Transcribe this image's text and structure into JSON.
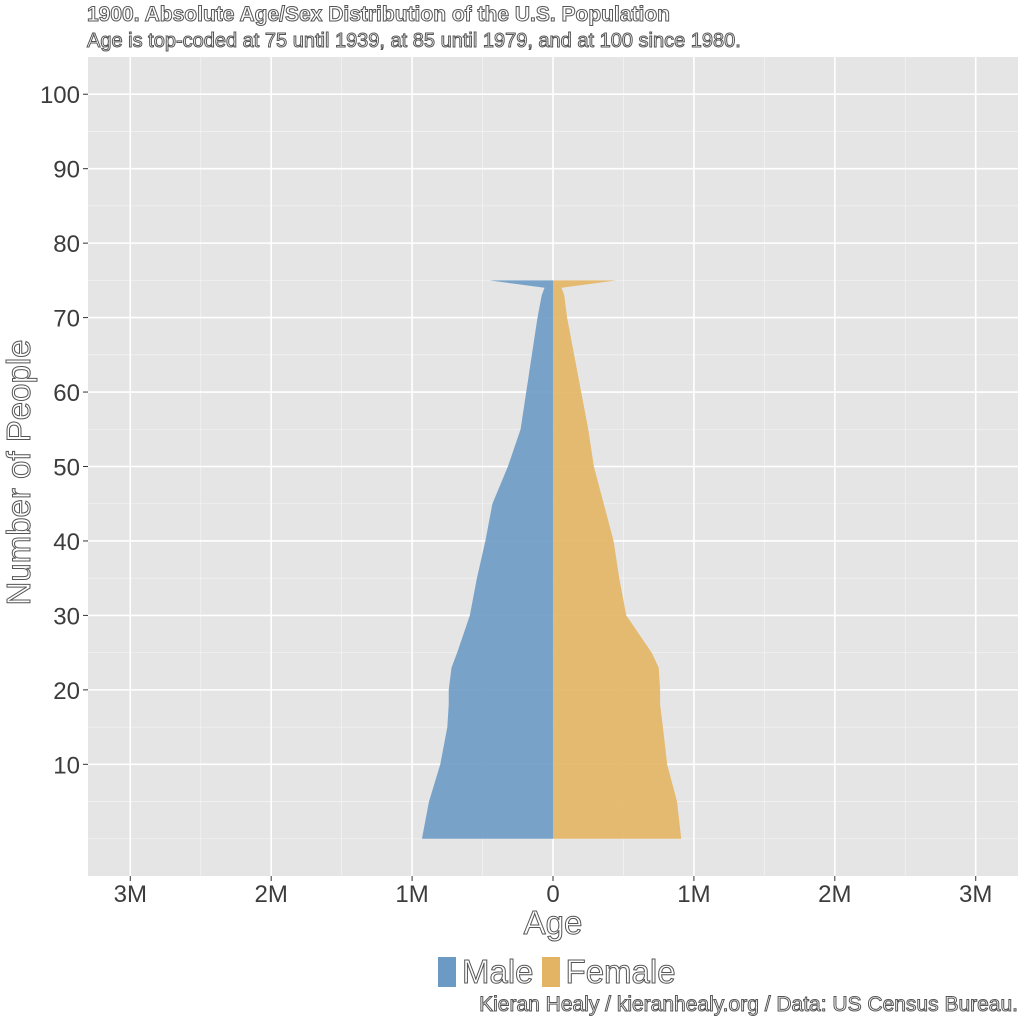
{
  "chart_data": {
    "type": "area",
    "title": "1900. Absolute Age/Sex Distribution of the U.S. Population",
    "subtitle": "Age is top-coded at 75 until 1939, at 85 until 1979, and at 100 since 1980.",
    "caption": "Kieran Healy / kieranhealy.org / Data: US Census Bureau.",
    "xlabel": "Age",
    "ylabel": "Number of People",
    "xlim": [
      -3.3,
      3.3
    ],
    "ylim": [
      -5,
      105
    ],
    "x_ticks": [
      -3,
      -2,
      -1,
      0,
      1,
      2,
      3
    ],
    "x_tick_labels": [
      "3M",
      "2M",
      "1M",
      "0",
      "1M",
      "2M",
      "3M"
    ],
    "y_ticks": [
      10,
      20,
      30,
      40,
      50,
      60,
      70,
      80,
      90,
      100
    ],
    "y_tick_labels": [
      "10",
      "20",
      "30",
      "40",
      "50",
      "60",
      "70",
      "80",
      "90",
      "100"
    ],
    "grid": true,
    "legend_position": "bottom",
    "series": [
      {
        "name": "Male",
        "color": "#6b9ac4",
        "age": [
          0,
          5,
          10,
          15,
          18,
          20,
          23,
          25,
          30,
          35,
          40,
          45,
          50,
          55,
          60,
          65,
          70,
          73,
          74,
          75
        ],
        "values_millions": [
          0.93,
          0.88,
          0.8,
          0.75,
          0.74,
          0.74,
          0.72,
          0.68,
          0.59,
          0.54,
          0.48,
          0.43,
          0.32,
          0.23,
          0.19,
          0.15,
          0.11,
          0.08,
          0.06,
          0.45
        ]
      },
      {
        "name": "Female",
        "color": "#e3b463",
        "age": [
          0,
          5,
          10,
          15,
          18,
          20,
          23,
          25,
          30,
          35,
          40,
          45,
          50,
          55,
          60,
          65,
          70,
          73,
          74,
          75
        ],
        "values_millions": [
          0.91,
          0.88,
          0.81,
          0.78,
          0.76,
          0.76,
          0.75,
          0.7,
          0.52,
          0.47,
          0.43,
          0.36,
          0.29,
          0.25,
          0.2,
          0.15,
          0.1,
          0.08,
          0.06,
          0.45
        ]
      }
    ]
  }
}
